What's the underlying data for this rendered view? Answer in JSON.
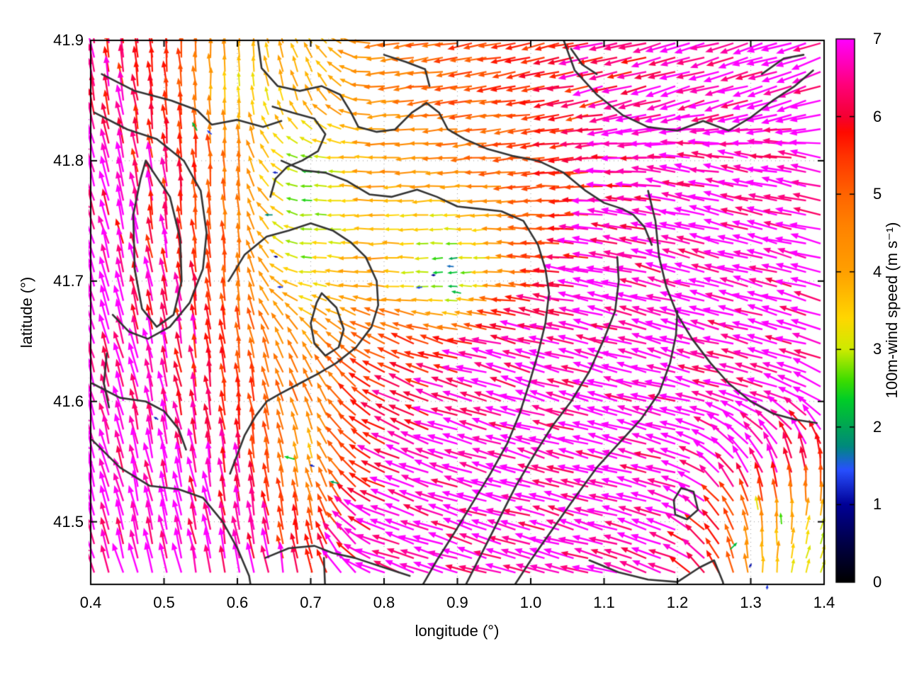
{
  "chart_data": {
    "type": "quiver",
    "title": "",
    "xlabel": "longitude (°)",
    "ylabel": "latitude (°)",
    "colorbar_label": "100m-wind speed (m s⁻¹)",
    "xlim": [
      0.4,
      1.4
    ],
    "ylim": [
      41.448,
      41.9
    ],
    "clim": [
      0,
      7
    ],
    "x_ticks": [
      "0.4",
      "0.5",
      "0.6",
      "0.7",
      "0.8",
      "0.9",
      "1.0",
      "1.1",
      "1.2",
      "1.3",
      "1.4"
    ],
    "x_tick_values": [
      0.4,
      0.5,
      0.6,
      0.7,
      0.8,
      0.9,
      1.0,
      1.1,
      1.2,
      1.3,
      1.4
    ],
    "y_ticks": [
      "41.9",
      "41.8",
      "41.7",
      "41.6",
      "41.5"
    ],
    "y_tick_values": [
      41.9,
      41.8,
      41.7,
      41.6,
      41.5
    ],
    "cbar_ticks": [
      "0",
      "1",
      "2",
      "3",
      "4",
      "5",
      "6",
      "7"
    ],
    "cbar_tick_values": [
      0,
      1,
      2,
      3,
      4,
      5,
      6,
      7
    ],
    "grid_dotted": true,
    "contour_color": "#333333",
    "palette": [
      [
        0.0,
        "#000000"
      ],
      [
        0.5,
        "#000046"
      ],
      [
        1.0,
        "#000096"
      ],
      [
        1.45,
        "#2850ff"
      ],
      [
        1.75,
        "#00897d"
      ],
      [
        2.0,
        "#00a455"
      ],
      [
        2.35,
        "#00cd28"
      ],
      [
        2.6,
        "#3ddc00"
      ],
      [
        3.0,
        "#cdeb00"
      ],
      [
        3.4,
        "#ffd700"
      ],
      [
        4.0,
        "#ffa000"
      ],
      [
        4.6,
        "#ff8200"
      ],
      [
        5.0,
        "#ff6400"
      ],
      [
        5.5,
        "#ff3200"
      ],
      [
        5.8,
        "#ff0a00"
      ],
      [
        6.0,
        "#f50032"
      ],
      [
        6.4,
        "#ff0078"
      ],
      [
        7.0,
        "#ff00ff"
      ]
    ],
    "grid_lons": [
      0.4,
      0.5,
      0.6,
      0.7,
      0.8,
      0.9,
      1.0,
      1.1,
      1.2,
      1.3,
      1.4
    ],
    "grid_lats": [
      41.9,
      41.85,
      41.8,
      41.75,
      41.7,
      41.65,
      41.6,
      41.55,
      41.5,
      41.45
    ],
    "speed_grid": [
      [
        6.3,
        5.8,
        4.2,
        3.6,
        4.6,
        5.2,
        5.6,
        6.2,
        6.8,
        7.0,
        7.0
      ],
      [
        6.4,
        5.6,
        3.2,
        4.0,
        4.4,
        5.0,
        5.5,
        6.2,
        7.0,
        7.0,
        7.0
      ],
      [
        6.6,
        6.0,
        4.6,
        2.6,
        4.2,
        4.6,
        5.2,
        6.2,
        7.0,
        7.0,
        7.0
      ],
      [
        7.0,
        6.2,
        4.6,
        2.6,
        3.8,
        3.2,
        4.8,
        6.6,
        7.0,
        7.0,
        7.0
      ],
      [
        7.0,
        6.2,
        5.0,
        3.2,
        4.2,
        1.8,
        5.2,
        7.0,
        7.0,
        7.0,
        7.0
      ],
      [
        7.0,
        6.6,
        5.2,
        4.2,
        5.2,
        5.6,
        7.0,
        7.0,
        7.0,
        7.0,
        7.0
      ],
      [
        7.0,
        6.8,
        5.6,
        4.6,
        5.8,
        7.0,
        7.0,
        7.0,
        7.0,
        7.0,
        7.0
      ],
      [
        7.0,
        7.0,
        6.2,
        3.8,
        6.2,
        7.0,
        7.0,
        7.0,
        7.0,
        7.0,
        6.2
      ],
      [
        7.0,
        7.0,
        6.6,
        5.2,
        7.0,
        7.0,
        7.0,
        7.0,
        7.0,
        4.6,
        3.2
      ],
      [
        7.0,
        7.0,
        7.0,
        6.2,
        7.0,
        7.0,
        7.0,
        7.0,
        7.0,
        4.2,
        2.6
      ]
    ],
    "dir_grid": [
      [
        100,
        95,
        92,
        120,
        188,
        190,
        192,
        192,
        196,
        196,
        198
      ],
      [
        102,
        95,
        92,
        110,
        186,
        188,
        190,
        192,
        196,
        196,
        198
      ],
      [
        106,
        96,
        92,
        175,
        182,
        184,
        186,
        184,
        172,
        170,
        170
      ],
      [
        108,
        98,
        92,
        178,
        180,
        182,
        180,
        174,
        168,
        166,
        166
      ],
      [
        108,
        100,
        94,
        172,
        178,
        182,
        174,
        168,
        165,
        165,
        165
      ],
      [
        108,
        102,
        96,
        130,
        155,
        166,
        166,
        165,
        165,
        165,
        165
      ],
      [
        106,
        102,
        97,
        112,
        152,
        163,
        164,
        165,
        165,
        165,
        150
      ],
      [
        105,
        102,
        98,
        106,
        156,
        162,
        164,
        165,
        165,
        125,
        95
      ],
      [
        105,
        102,
        99,
        102,
        158,
        162,
        164,
        165,
        162,
        100,
        75
      ],
      [
        108,
        103,
        100,
        101,
        160,
        163,
        164,
        165,
        155,
        92,
        68
      ]
    ],
    "slow_spots": [
      [
        0.655,
        41.79,
        1.2,
        175
      ],
      [
        0.648,
        41.755,
        1.8,
        180
      ],
      [
        0.655,
        41.72,
        1.0,
        170
      ],
      [
        0.662,
        41.695,
        1.3,
        178
      ],
      [
        0.87,
        41.705,
        1.0,
        182
      ],
      [
        0.852,
        41.695,
        1.4,
        188
      ],
      [
        0.895,
        41.712,
        1.6,
        175
      ],
      [
        0.905,
        41.69,
        2.2,
        170
      ],
      [
        0.565,
        41.822,
        1.4,
        140
      ],
      [
        0.545,
        41.825,
        2.2,
        120
      ],
      [
        0.492,
        41.585,
        1.2,
        150
      ],
      [
        0.705,
        41.546,
        1.2,
        162
      ],
      [
        0.738,
        41.532,
        2.0,
        168
      ],
      [
        0.678,
        41.552,
        2.4,
        165
      ],
      [
        1.298,
        41.462,
        1.1,
        60
      ],
      [
        1.322,
        41.443,
        1.3,
        85
      ],
      [
        1.272,
        41.477,
        2.2,
        45
      ],
      [
        1.342,
        41.498,
        2.6,
        95
      ],
      [
        1.31,
        41.51,
        3.2,
        100
      ]
    ],
    "contours": [
      [
        [
          0.415,
          41.872
        ],
        [
          0.46,
          41.858
        ],
        [
          0.51,
          41.85
        ],
        [
          0.545,
          41.842
        ],
        [
          0.565,
          41.83
        ],
        [
          0.6,
          41.834
        ],
        [
          0.635,
          41.828
        ],
        [
          0.66,
          41.833
        ]
      ],
      [
        [
          0.405,
          41.84
        ],
        [
          0.45,
          41.826
        ],
        [
          0.49,
          41.818
        ],
        [
          0.527,
          41.8
        ],
        [
          0.55,
          41.775
        ],
        [
          0.558,
          41.74
        ],
        [
          0.553,
          41.71
        ],
        [
          0.535,
          41.682
        ],
        [
          0.508,
          41.662
        ],
        [
          0.478,
          41.652
        ],
        [
          0.452,
          41.658
        ],
        [
          0.43,
          41.672
        ]
      ],
      [
        [
          0.475,
          41.8
        ],
        [
          0.508,
          41.77
        ],
        [
          0.522,
          41.735
        ],
        [
          0.524,
          41.7
        ],
        [
          0.513,
          41.672
        ],
        [
          0.49,
          41.662
        ],
        [
          0.47,
          41.677
        ],
        [
          0.46,
          41.71
        ],
        [
          0.458,
          41.755
        ],
        [
          0.468,
          41.785
        ],
        [
          0.475,
          41.8
        ]
      ],
      [
        [
          0.402,
          41.568
        ],
        [
          0.44,
          41.545
        ],
        [
          0.48,
          41.53
        ],
        [
          0.52,
          41.527
        ],
        [
          0.553,
          41.52
        ],
        [
          0.58,
          41.5
        ],
        [
          0.6,
          41.478
        ],
        [
          0.616,
          41.455
        ],
        [
          0.62,
          41.44
        ]
      ],
      [
        [
          0.402,
          41.615
        ],
        [
          0.44,
          41.603
        ],
        [
          0.475,
          41.6
        ],
        [
          0.5,
          41.592
        ],
        [
          0.52,
          41.577
        ],
        [
          0.53,
          41.56
        ]
      ],
      [
        [
          0.628,
          41.9
        ],
        [
          0.633,
          41.877
        ],
        [
          0.655,
          41.862
        ],
        [
          0.685,
          41.858
        ],
        [
          0.715,
          41.862
        ],
        [
          0.74,
          41.855
        ],
        [
          0.755,
          41.84
        ],
        [
          0.765,
          41.828
        ],
        [
          0.79,
          41.824
        ],
        [
          0.815,
          41.826
        ],
        [
          0.838,
          41.84
        ],
        [
          0.858,
          41.848
        ],
        [
          0.875,
          41.84
        ],
        [
          0.887,
          41.826
        ],
        [
          0.91,
          41.818
        ],
        [
          0.94,
          41.81
        ],
        [
          0.975,
          41.804
        ],
        [
          1.01,
          41.8
        ],
        [
          1.045,
          41.79
        ],
        [
          1.075,
          41.775
        ],
        [
          1.1,
          41.765
        ],
        [
          1.125,
          41.76
        ],
        [
          1.14,
          41.755
        ],
        [
          1.155,
          41.745
        ],
        [
          1.165,
          41.73
        ]
      ],
      [
        [
          0.648,
          41.845
        ],
        [
          0.675,
          41.84
        ],
        [
          0.705,
          41.835
        ],
        [
          0.72,
          41.822
        ],
        [
          0.71,
          41.808
        ],
        [
          0.688,
          41.8
        ],
        [
          0.668,
          41.795
        ],
        [
          0.652,
          41.785
        ],
        [
          0.645,
          41.77
        ]
      ],
      [
        [
          0.66,
          41.8
        ],
        [
          0.69,
          41.792
        ],
        [
          0.72,
          41.79
        ],
        [
          0.75,
          41.783
        ],
        [
          0.78,
          41.772
        ],
        [
          0.81,
          41.77
        ],
        [
          0.845,
          41.776
        ],
        [
          0.872,
          41.77
        ],
        [
          0.9,
          41.762
        ],
        [
          0.93,
          41.76
        ],
        [
          0.96,
          41.758
        ],
        [
          0.99,
          41.75
        ],
        [
          1.01,
          41.73
        ],
        [
          1.02,
          41.71
        ],
        [
          1.025,
          41.69
        ],
        [
          1.02,
          41.665
        ],
        [
          1.01,
          41.64
        ],
        [
          0.998,
          41.615
        ],
        [
          0.985,
          41.59
        ],
        [
          0.968,
          41.565
        ],
        [
          0.945,
          41.54
        ],
        [
          0.92,
          41.515
        ],
        [
          0.895,
          41.49
        ],
        [
          0.872,
          41.468
        ],
        [
          0.855,
          41.45
        ],
        [
          0.845,
          41.44
        ]
      ],
      [
        [
          0.588,
          41.7
        ],
        [
          0.61,
          41.722
        ],
        [
          0.64,
          41.737
        ],
        [
          0.67,
          41.742
        ],
        [
          0.7,
          41.748
        ],
        [
          0.73,
          41.742
        ],
        [
          0.755,
          41.732
        ],
        [
          0.775,
          41.72
        ],
        [
          0.79,
          41.7
        ],
        [
          0.792,
          41.68
        ],
        [
          0.783,
          41.662
        ],
        [
          0.762,
          41.645
        ],
        [
          0.735,
          41.632
        ],
        [
          0.71,
          41.623
        ],
        [
          0.685,
          41.615
        ],
        [
          0.66,
          41.607
        ],
        [
          0.64,
          41.6
        ],
        [
          0.625,
          41.588
        ],
        [
          0.61,
          41.572
        ],
        [
          0.6,
          41.556
        ],
        [
          0.59,
          41.54
        ]
      ],
      [
        [
          0.715,
          41.69
        ],
        [
          0.735,
          41.678
        ],
        [
          0.745,
          41.66
        ],
        [
          0.738,
          41.645
        ],
        [
          0.72,
          41.638
        ],
        [
          0.705,
          41.648
        ],
        [
          0.7,
          41.665
        ],
        [
          0.708,
          41.682
        ],
        [
          0.715,
          41.69
        ]
      ],
      [
        [
          0.638,
          41.47
        ],
        [
          0.67,
          41.478
        ],
        [
          0.705,
          41.48
        ],
        [
          0.73,
          41.474
        ],
        [
          0.76,
          41.47
        ],
        [
          0.8,
          41.462
        ],
        [
          0.835,
          41.455
        ]
      ],
      [
        [
          0.718,
          41.47
        ],
        [
          0.72,
          41.44
        ]
      ],
      [
        [
          0.905,
          41.44
        ],
        [
          0.93,
          41.47
        ],
        [
          0.955,
          41.5
        ],
        [
          0.98,
          41.53
        ],
        [
          1.005,
          41.556
        ],
        [
          1.03,
          41.58
        ],
        [
          1.055,
          41.6
        ],
        [
          1.08,
          41.625
        ],
        [
          1.1,
          41.652
        ],
        [
          1.115,
          41.675
        ],
        [
          1.12,
          41.7
        ],
        [
          1.118,
          41.72
        ]
      ],
      [
        [
          0.97,
          41.44
        ],
        [
          1.0,
          41.468
        ],
        [
          1.03,
          41.494
        ],
        [
          1.06,
          41.52
        ],
        [
          1.09,
          41.545
        ],
        [
          1.12,
          41.565
        ],
        [
          1.15,
          41.585
        ],
        [
          1.175,
          41.607
        ],
        [
          1.19,
          41.632
        ],
        [
          1.198,
          41.655
        ],
        [
          1.2,
          41.675
        ]
      ],
      [
        [
          1.16,
          41.775
        ],
        [
          1.17,
          41.75
        ],
        [
          1.175,
          41.72
        ],
        [
          1.185,
          41.695
        ],
        [
          1.2,
          41.672
        ],
        [
          1.22,
          41.652
        ],
        [
          1.245,
          41.632
        ],
        [
          1.27,
          41.615
        ],
        [
          1.3,
          41.6
        ],
        [
          1.33,
          41.59
        ],
        [
          1.36,
          41.585
        ],
        [
          1.39,
          41.582
        ]
      ],
      [
        [
          1.045,
          41.9
        ],
        [
          1.06,
          41.875
        ],
        [
          1.09,
          41.855
        ],
        [
          1.125,
          41.838
        ],
        [
          1.16,
          41.828
        ],
        [
          1.2,
          41.825
        ],
        [
          1.235,
          41.833
        ],
        [
          1.27,
          41.825
        ],
        [
          1.3,
          41.836
        ],
        [
          1.33,
          41.85
        ],
        [
          1.36,
          41.862
        ],
        [
          1.385,
          41.875
        ]
      ],
      [
        [
          1.315,
          41.872
        ],
        [
          1.345,
          41.885
        ],
        [
          1.372,
          41.888
        ]
      ],
      [
        [
          1.055,
          41.893
        ],
        [
          1.07,
          41.88
        ],
        [
          1.09,
          41.872
        ]
      ],
      [
        [
          1.195,
          41.518
        ],
        [
          1.205,
          41.528
        ],
        [
          1.222,
          41.525
        ],
        [
          1.228,
          41.51
        ],
        [
          1.213,
          41.502
        ],
        [
          1.197,
          41.506
        ],
        [
          1.195,
          41.518
        ]
      ],
      [
        [
          1.08,
          41.468
        ],
        [
          1.12,
          41.458
        ],
        [
          1.16,
          41.452
        ],
        [
          1.2,
          41.45
        ],
        [
          1.23,
          41.462
        ],
        [
          1.25,
          41.468
        ],
        [
          1.262,
          41.45
        ],
        [
          1.265,
          41.44
        ]
      ],
      [
        [
          0.8,
          41.888
        ],
        [
          0.83,
          41.882
        ],
        [
          0.856,
          41.876
        ],
        [
          0.862,
          41.862
        ]
      ],
      [
        [
          0.422,
          41.64
        ],
        [
          0.418,
          41.615
        ],
        [
          0.425,
          41.595
        ]
      ]
    ]
  }
}
